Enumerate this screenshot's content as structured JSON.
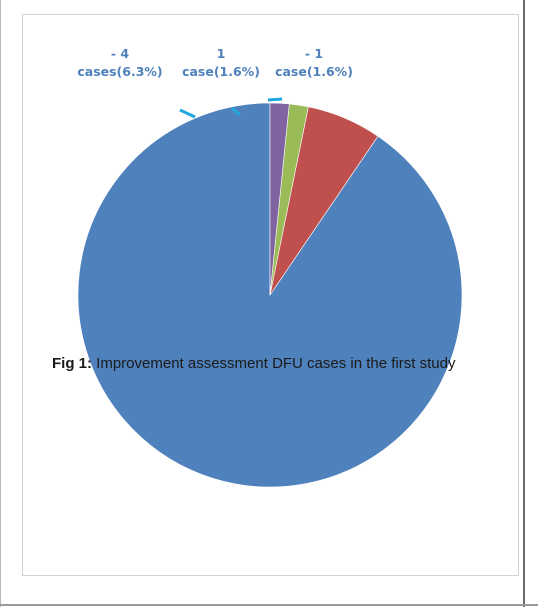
{
  "chart_data": {
    "type": "pie",
    "title": "",
    "slices": [
      {
        "value": 90.5,
        "color": "#4f81bd",
        "label_top": "",
        "label_bottom": ""
      },
      {
        "value": 6.3,
        "color": "#c0504d",
        "label_top": "- 4",
        "label_bottom": "cases(6.3%)"
      },
      {
        "value": 1.6,
        "color": "#9bbb59",
        "label_top": "1",
        "label_bottom": "case(1.6%)"
      },
      {
        "value": 1.6,
        "color": "#8064a2",
        "label_top": "- 1",
        "label_bottom": "case(1.6%)"
      }
    ]
  },
  "caption": {
    "prefix": "Fig 1:",
    "text": " Improvement assessment DFU cases in the first study"
  }
}
